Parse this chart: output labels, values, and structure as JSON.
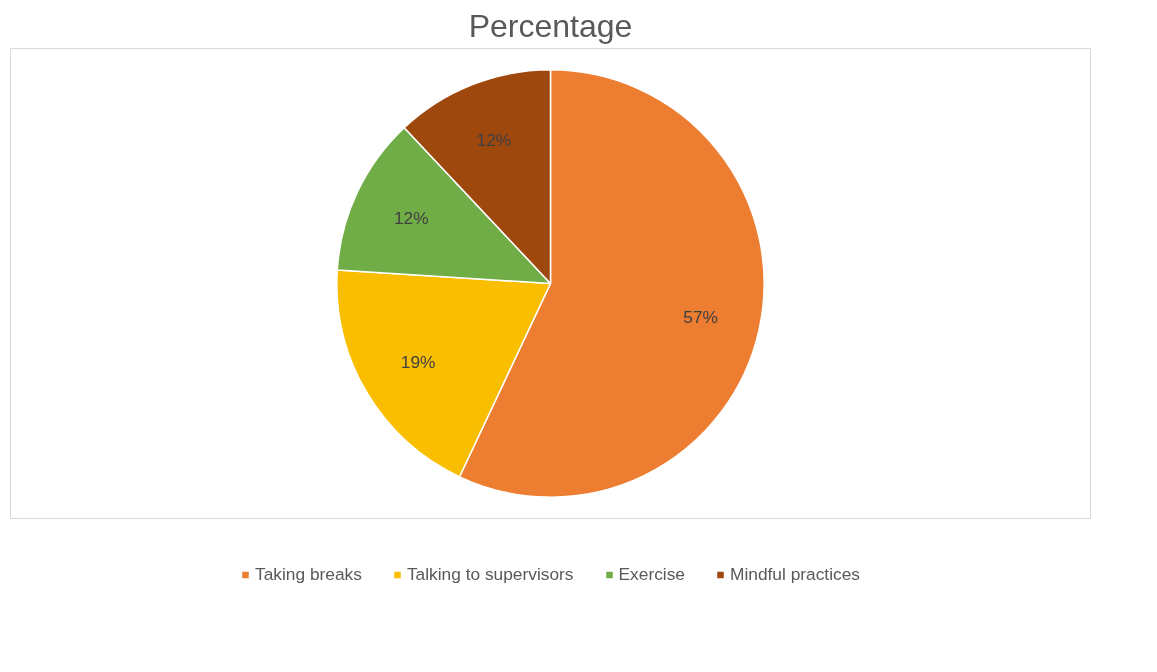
{
  "chart_data": {
    "type": "pie",
    "title": "Percentage",
    "categories": [
      "Taking breaks",
      "Talking to supervisors",
      "Exercise",
      "Mindful practices"
    ],
    "values": [
      57,
      19,
      12,
      12
    ],
    "value_labels": [
      "57%",
      "19%",
      "12%",
      "12%"
    ],
    "colors": [
      "#ed7d31",
      "#f9be00",
      "#70ad47",
      "#9e480e"
    ],
    "legend": "bottom"
  }
}
